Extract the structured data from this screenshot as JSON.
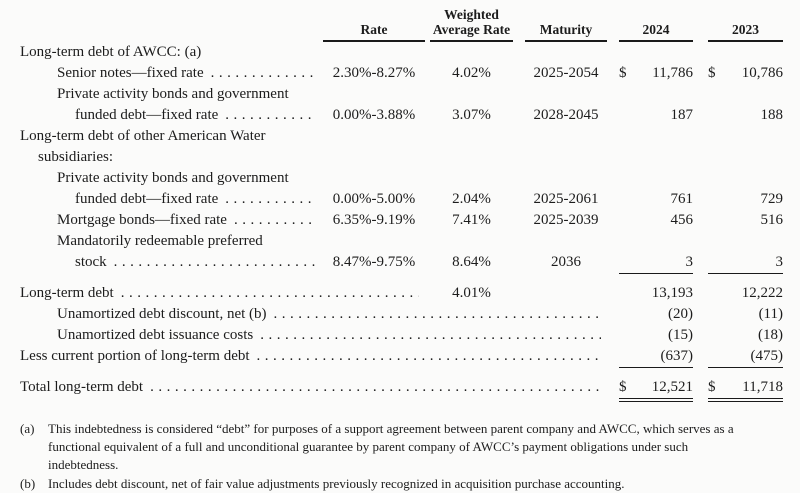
{
  "table": {
    "currency": "$",
    "headers": {
      "rate": "Rate",
      "weighted_line1": "Weighted",
      "weighted_line2": "Average Rate",
      "maturity": "Maturity",
      "y2024": "2024",
      "y2023": "2023"
    },
    "rows": [
      {
        "label": "Long-term debt of AWCC: (a)"
      },
      {
        "label": "Senior notes—fixed rate",
        "rate": "2.30%-8.27%",
        "war": "4.02%",
        "maturity": "2025-2054",
        "v2024": "11,786",
        "v2023": "10,786"
      },
      {
        "label": "Private activity bonds and government"
      },
      {
        "label": "funded debt—fixed rate",
        "rate": "0.00%-3.88%",
        "war": "3.07%",
        "maturity": "2028-2045",
        "v2024": "187",
        "v2023": "188"
      },
      {
        "label": "Long-term debt of other American Water"
      },
      {
        "label": "subsidiaries:"
      },
      {
        "label": "Private activity bonds and government"
      },
      {
        "label": "funded debt—fixed rate",
        "rate": "0.00%-5.00%",
        "war": "2.04%",
        "maturity": "2025-2061",
        "v2024": "761",
        "v2023": "729"
      },
      {
        "label": "Mortgage bonds—fixed rate",
        "rate": "6.35%-9.19%",
        "war": "7.41%",
        "maturity": "2025-2039",
        "v2024": "456",
        "v2023": "516"
      },
      {
        "label": "Mandatorily redeemable preferred"
      },
      {
        "label": "stock",
        "rate": "8.47%-9.75%",
        "war": "8.64%",
        "maturity": "2036",
        "v2024": "3",
        "v2023": "3"
      },
      {
        "label": "Long-term debt",
        "war": "4.01%",
        "v2024": "13,193",
        "v2023": "12,222"
      },
      {
        "label": "Unamortized debt discount, net (b)",
        "v2024": "(20)",
        "v2023": "(11)"
      },
      {
        "label": "Unamortized debt issuance costs",
        "v2024": "(15)",
        "v2023": "(18)"
      },
      {
        "label": "Less current portion of long-term debt",
        "v2024": "(637)",
        "v2023": "(475)"
      },
      {
        "label": "Total long-term debt",
        "v2024": "12,521",
        "v2023": "11,718"
      }
    ]
  },
  "footnotes": [
    {
      "marker": "(a)",
      "line1": "This indebtedness is considered “debt” for purposes of a support agreement between parent company and AWCC, which serves as a",
      "line2": "functional equivalent of a full and unconditional guarantee by parent company of AWCC’s payment obligations under such",
      "line3": "indebtedness."
    },
    {
      "marker": "(b)",
      "line1": "Includes debt discount, net of fair value adjustments previously recognized in acquisition purchase accounting."
    }
  ]
}
